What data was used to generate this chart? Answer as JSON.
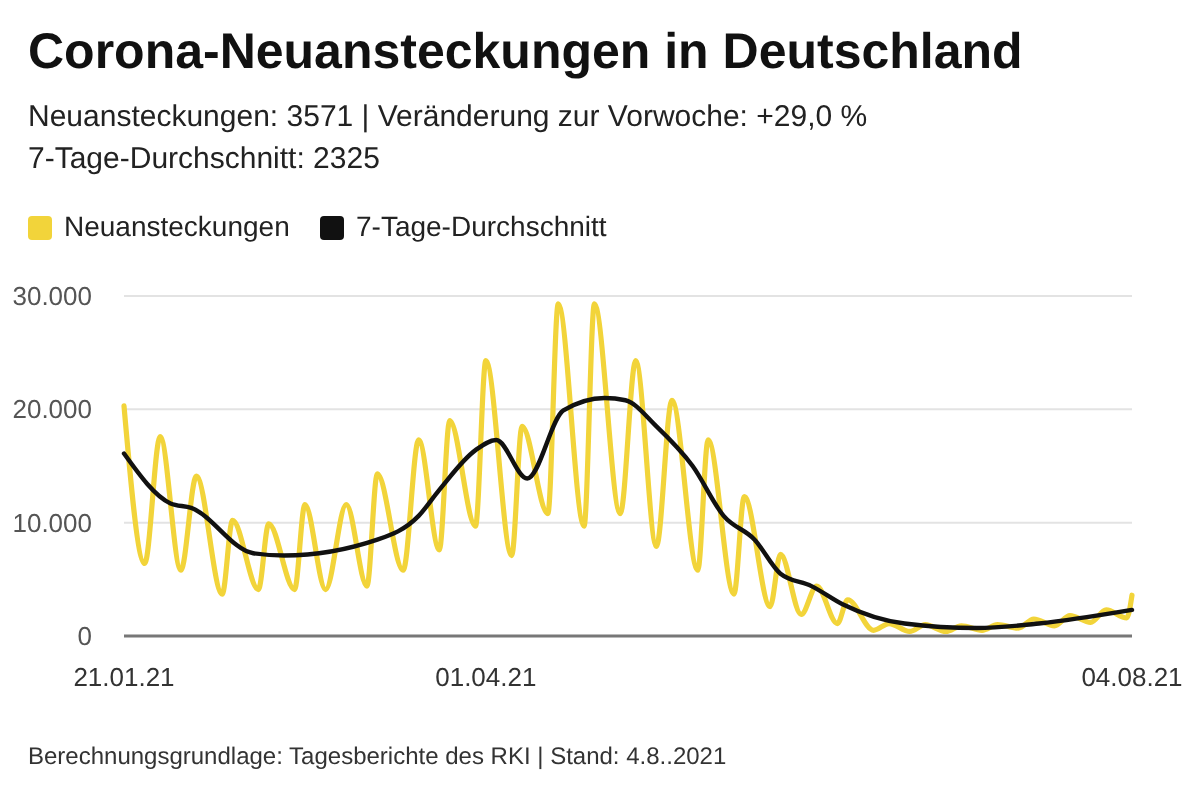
{
  "chart_data": {
    "type": "line",
    "title": "Corona-Neuansteckungen in Deutschland",
    "subtitle": "Neuansteckungen: 3571 | Veränderung zur Vorwoche: +29,0 %",
    "annotations": [
      "7-Tage-Durchschnitt: 2325",
      "Berechnungsgrundlage: Tagesberichte des RKI | Stand: 4.8..2021"
    ],
    "xlim": [
      "2021-01-21",
      "2021-08-04"
    ],
    "xticks": [
      {
        "value": "2021-01-21",
        "label": "21.01.21"
      },
      {
        "value": "2021-04-01",
        "label": "01.04.21"
      },
      {
        "value": "2021-08-04",
        "label": "04.08.21"
      }
    ],
    "ylim": [
      0,
      30000
    ],
    "yticks": [
      0,
      {
        "value": 10000,
        "label": "10.000"
      },
      {
        "value": 20000,
        "label": "20.000"
      },
      {
        "value": 30000,
        "label": "30.000"
      }
    ],
    "grid": "y",
    "legend": "top left",
    "marker": "none",
    "line_style": "solid",
    "series": [
      {
        "name": "Neuansteckungen",
        "color": "#f2d43a",
        "x": [
          "2021-01-21",
          "2021-01-25",
          "2021-01-28",
          "2021-02-01",
          "2021-02-04",
          "2021-02-09",
          "2021-02-11",
          "2021-02-16",
          "2021-02-18",
          "2021-02-23",
          "2021-02-25",
          "2021-03-01",
          "2021-03-05",
          "2021-03-09",
          "2021-03-11",
          "2021-03-16",
          "2021-03-19",
          "2021-03-23",
          "2021-03-25",
          "2021-03-30",
          "2021-04-01",
          "2021-04-06",
          "2021-04-08",
          "2021-04-13",
          "2021-04-15",
          "2021-04-20",
          "2021-04-22",
          "2021-04-27",
          "2021-04-30",
          "2021-05-04",
          "2021-05-07",
          "2021-05-12",
          "2021-05-14",
          "2021-05-19",
          "2021-05-21",
          "2021-05-26",
          "2021-05-28",
          "2021-06-01",
          "2021-06-04",
          "2021-06-08",
          "2021-06-10",
          "2021-06-15",
          "2021-06-18",
          "2021-06-22",
          "2021-06-25",
          "2021-06-29",
          "2021-07-02",
          "2021-07-06",
          "2021-07-09",
          "2021-07-13",
          "2021-07-16",
          "2021-07-20",
          "2021-07-23",
          "2021-07-27",
          "2021-07-30",
          "2021-08-03",
          "2021-08-04"
        ],
        "values": [
          20300,
          6400,
          17600,
          5800,
          14100,
          3700,
          10200,
          4100,
          9900,
          4100,
          11600,
          4100,
          11600,
          4400,
          14300,
          5800,
          17300,
          7600,
          19000,
          9700,
          24300,
          7100,
          18500,
          10800,
          29300,
          9700,
          29300,
          10800,
          24300,
          7900,
          20800,
          5800,
          17300,
          3700,
          12300,
          2600,
          7200,
          1900,
          4400,
          1100,
          3200,
          500,
          1100,
          400,
          1000,
          400,
          900,
          500,
          1000,
          700,
          1500,
          900,
          1800,
          1200,
          2300,
          1600,
          3600
        ]
      },
      {
        "name": "7-Tage-Durchschnitt",
        "color": "#111111",
        "x": [
          "2021-01-21",
          "2021-01-30",
          "2021-02-03",
          "2021-02-15",
          "2021-02-21",
          "2021-03-11",
          "2021-03-19",
          "2021-03-23",
          "2021-03-30",
          "2021-04-03",
          "2021-04-09",
          "2021-04-16",
          "2021-04-24",
          "2021-04-28",
          "2021-05-04",
          "2021-05-11",
          "2021-05-17",
          "2021-05-23",
          "2021-05-28",
          "2021-06-03",
          "2021-06-09",
          "2021-06-21",
          "2021-07-05",
          "2021-07-17",
          "2021-08-04"
        ],
        "values": [
          16100,
          11700,
          11300,
          7300,
          7100,
          8500,
          10600,
          12900,
          16400,
          17300,
          13900,
          19900,
          21000,
          20800,
          18500,
          15000,
          10600,
          8500,
          5500,
          4400,
          2800,
          1100,
          700,
          1100,
          2300
        ]
      }
    ]
  }
}
